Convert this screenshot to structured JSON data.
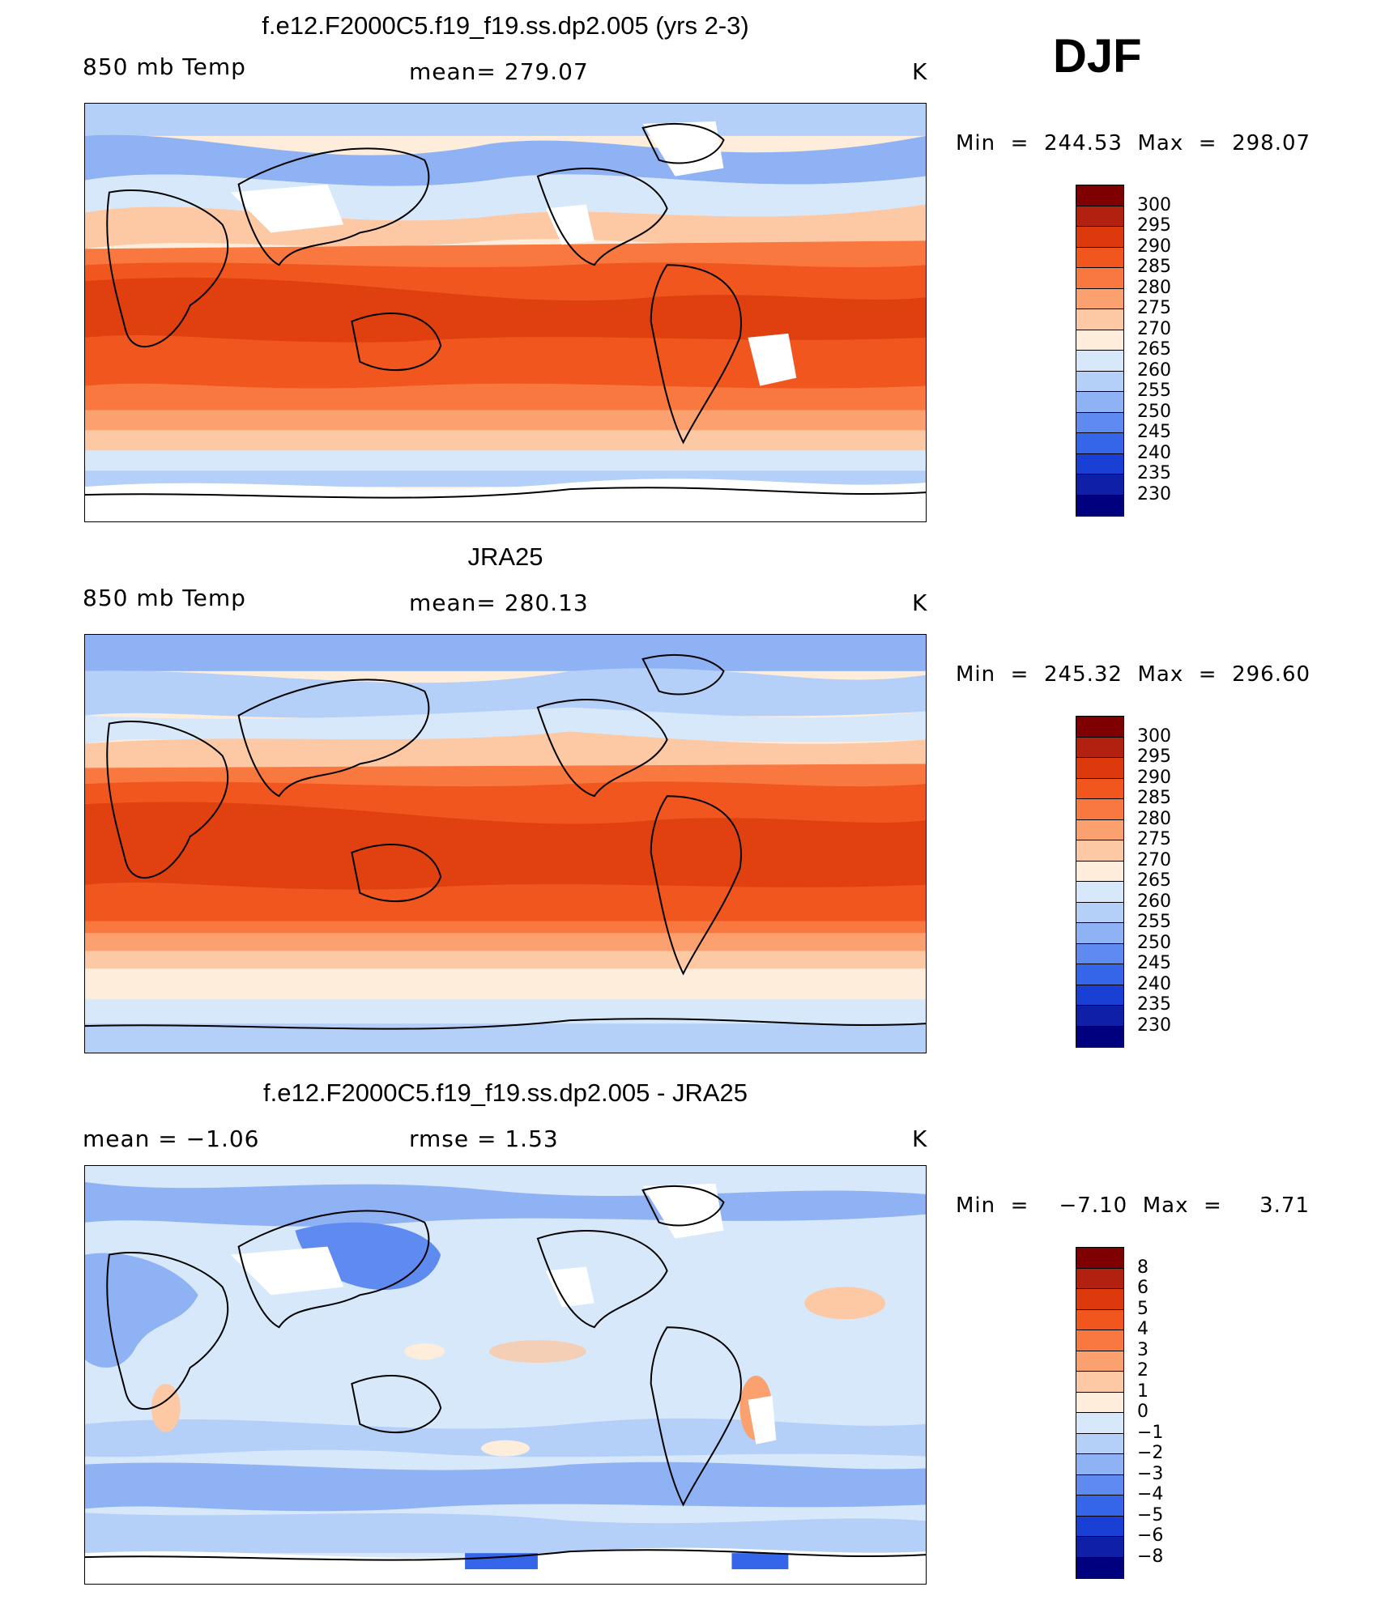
{
  "season": "DJF",
  "panels": [
    {
      "title": "f.e12.F2000C5.f19_f19.ss.dp2.005 (yrs 2-3)",
      "left_label": "850 mb Temp",
      "center_label": "mean=  279.07",
      "right_label": "K",
      "minmax": "Min  =  244.53  Max  =  298.07",
      "colorbar": {
        "labels": [
          "300",
          "295",
          "290",
          "285",
          "280",
          "275",
          "270",
          "265",
          "260",
          "255",
          "250",
          "245",
          "240",
          "235",
          "230"
        ],
        "colors": [
          "#7f0000",
          "#b2210f",
          "#dc3a0c",
          "#f0561e",
          "#f8783f",
          "#fba06f",
          "#fdc8a4",
          "#feeddb",
          "#d7e8fb",
          "#b4cff8",
          "#8fb2f4",
          "#5f8af0",
          "#3565e8",
          "#1a3fd4",
          "#0f1fa8",
          "#00007f"
        ]
      },
      "fields": {
        "base": "#fba06f"
      }
    },
    {
      "title": "JRA25",
      "left_label": "850 mb Temp",
      "center_label": "mean=  280.13",
      "right_label": "K",
      "minmax": "Min  =  245.32  Max  =  296.60",
      "colorbar": {
        "labels": [
          "300",
          "295",
          "290",
          "285",
          "280",
          "275",
          "270",
          "265",
          "260",
          "255",
          "250",
          "245",
          "240",
          "235",
          "230"
        ],
        "colors": [
          "#7f0000",
          "#b2210f",
          "#dc3a0c",
          "#f0561e",
          "#f8783f",
          "#fba06f",
          "#fdc8a4",
          "#feeddb",
          "#d7e8fb",
          "#b4cff8",
          "#8fb2f4",
          "#5f8af0",
          "#3565e8",
          "#1a3fd4",
          "#0f1fa8",
          "#00007f"
        ]
      },
      "fields": {
        "base": "#fba06f"
      }
    },
    {
      "title": "f.e12.F2000C5.f19_f19.ss.dp2.005 - JRA25",
      "left_label": "mean  =    −1.06",
      "center_label": "rmse  =     1.53",
      "right_label": "K",
      "minmax": "Min  =    −7.10  Max  =     3.71",
      "colorbar": {
        "labels": [
          "8",
          "6",
          "5",
          "4",
          "3",
          "2",
          "1",
          "0",
          "−1",
          "−2",
          "−3",
          "−4",
          "−5",
          "−6",
          "−8"
        ],
        "colors": [
          "#7f0000",
          "#b2210f",
          "#dc3a0c",
          "#f0561e",
          "#f8783f",
          "#fba06f",
          "#fdc8a4",
          "#feeddb",
          "#d7e8fb",
          "#b4cff8",
          "#8fb2f4",
          "#5f8af0",
          "#3565e8",
          "#1a3fd4",
          "#0f1fa8",
          "#00007f"
        ]
      },
      "fields": {
        "base": "#d7e8fb"
      }
    }
  ]
}
